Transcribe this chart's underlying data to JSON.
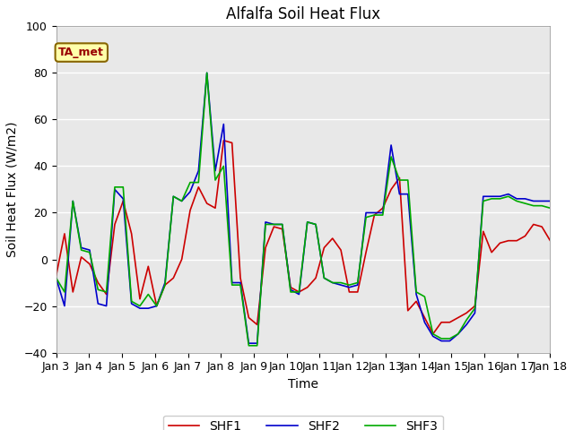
{
  "title": "Alfalfa Soil Heat Flux",
  "xlabel": "Time",
  "ylabel": "Soil Heat Flux (W/m2)",
  "ylim": [
    -40,
    100
  ],
  "xlim": [
    0,
    15
  ],
  "x_tick_labels": [
    "Jan 3",
    "Jan 4",
    "Jan 5",
    "Jan 6",
    "Jan 7",
    "Jan 8",
    "Jan 9",
    "Jan 10",
    "Jan 11",
    "Jan 12",
    "Jan 13",
    "Jan 14",
    "Jan 15",
    "Jan 16",
    "Jan 17",
    "Jan 18"
  ],
  "colors": {
    "SHF1": "#cc0000",
    "SHF2": "#0000cc",
    "SHF3": "#00aa00"
  },
  "bg_color": "#e8e8e8",
  "annotation_text": "TA_met",
  "annotation_bg": "#ffffaa",
  "annotation_fg": "#990000",
  "shf1": [
    -7,
    11,
    -14,
    1,
    -2,
    -10,
    -15,
    15,
    25,
    11,
    -17,
    -3,
    -20,
    -11,
    -8,
    0,
    21,
    31,
    24,
    22,
    51,
    50,
    -8,
    -25,
    -28,
    5,
    14,
    13,
    -12,
    -14,
    -12,
    -8,
    5,
    9,
    4,
    -14,
    -14,
    3,
    19,
    22,
    30,
    35,
    -22,
    -18,
    -25,
    -32,
    -27,
    -27,
    -25,
    -23,
    -20,
    12,
    3,
    7,
    8,
    8,
    10,
    15,
    14,
    8
  ],
  "shf2": [
    -8,
    -20,
    25,
    5,
    4,
    -19,
    -20,
    30,
    26,
    -19,
    -21,
    -21,
    -20,
    -10,
    27,
    25,
    29,
    38,
    80,
    38,
    58,
    -10,
    -10,
    -36,
    -36,
    16,
    15,
    15,
    -13,
    -15,
    16,
    15,
    -8,
    -10,
    -11,
    -12,
    -11,
    20,
    20,
    20,
    49,
    28,
    28,
    -15,
    -27,
    -33,
    -35,
    -35,
    -32,
    -28,
    -23,
    27,
    27,
    27,
    28,
    26,
    26,
    25,
    25,
    25
  ],
  "shf3": [
    -8,
    -14,
    25,
    4,
    3,
    -13,
    -14,
    31,
    31,
    -18,
    -20,
    -15,
    -20,
    -11,
    27,
    25,
    33,
    33,
    80,
    34,
    40,
    -11,
    -11,
    -37,
    -37,
    15,
    15,
    15,
    -14,
    -14,
    16,
    15,
    -8,
    -10,
    -10,
    -11,
    -10,
    18,
    19,
    19,
    44,
    34,
    34,
    -14,
    -16,
    -32,
    -34,
    -34,
    -32,
    -26,
    -21,
    25,
    26,
    26,
    27,
    25,
    24,
    23,
    23,
    22
  ],
  "n_points": 60
}
